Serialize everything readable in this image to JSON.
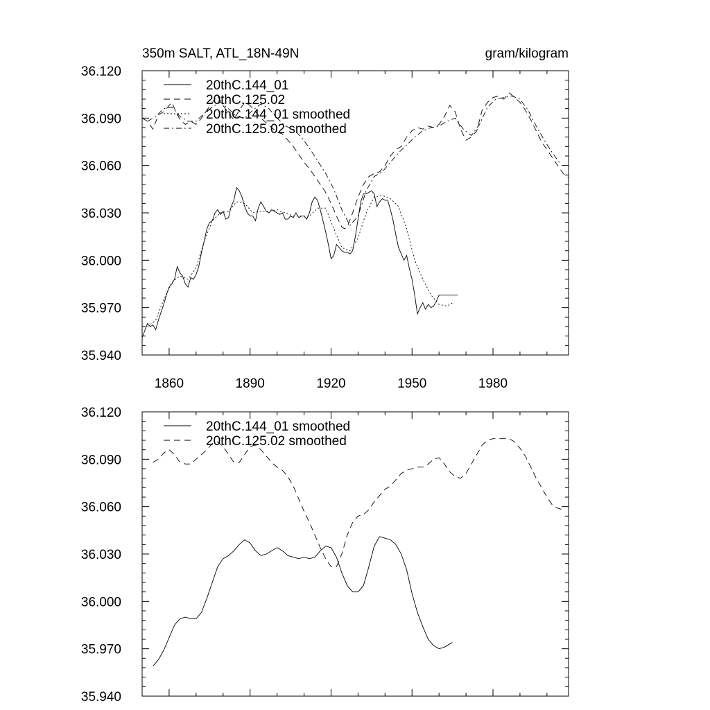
{
  "chart_data": [
    {
      "type": "line",
      "title": "350m SALT, ATL_18N-49N",
      "units": "gram/kilogram",
      "xlim": [
        1850,
        2008
      ],
      "ylim": [
        35.94,
        36.12
      ],
      "y_ticks": [
        "36.120",
        "36.090",
        "36.060",
        "36.030",
        "36.000",
        "35.970",
        "35.940"
      ],
      "x_ticks": [
        "1860",
        "1890",
        "1920",
        "1950",
        "1980"
      ],
      "legend": "top-left",
      "series": [
        {
          "name": "20thC.144_01",
          "style": "solid",
          "x": [
            1850,
            1852,
            1853,
            1854,
            1855,
            1856,
            1857,
            1858,
            1859,
            1860,
            1861,
            1862,
            1863,
            1864,
            1865,
            1866,
            1867,
            1868,
            1869,
            1870,
            1871,
            1872,
            1873,
            1874,
            1875,
            1876,
            1877,
            1878,
            1879,
            1880,
            1881,
            1882,
            1883,
            1884,
            1885,
            1886,
            1887,
            1888,
            1889,
            1890,
            1891,
            1892,
            1893,
            1894,
            1895,
            1896,
            1897,
            1898,
            1899,
            1900,
            1901,
            1902,
            1903,
            1904,
            1905,
            1906,
            1907,
            1908,
            1909,
            1910,
            1911,
            1912,
            1913,
            1914,
            1915,
            1916,
            1917,
            1918,
            1919,
            1920,
            1921,
            1922,
            1923,
            1924,
            1925,
            1926,
            1927,
            1928,
            1929,
            1930,
            1931,
            1932,
            1933,
            1934,
            1935,
            1936,
            1937,
            1938,
            1939,
            1940,
            1941,
            1942,
            1943,
            1944,
            1945,
            1946,
            1947,
            1948,
            1949,
            1950,
            1951,
            1952,
            1953,
            1954,
            1955,
            1956,
            1957,
            1958,
            1959,
            1960,
            1961,
            1962,
            1963,
            1964,
            1965,
            1966,
            1967
          ],
          "values": [
            35.951,
            35.96,
            35.958,
            35.959,
            35.956,
            35.962,
            35.967,
            35.972,
            35.978,
            35.983,
            35.985,
            35.988,
            35.996,
            35.992,
            35.99,
            35.985,
            35.983,
            35.989,
            35.988,
            35.991,
            35.996,
            36.005,
            36.012,
            36.02,
            36.024,
            36.025,
            36.03,
            36.032,
            36.029,
            36.031,
            36.026,
            36.027,
            36.034,
            36.038,
            36.046,
            36.044,
            36.04,
            36.034,
            36.03,
            36.028,
            36.028,
            36.025,
            36.033,
            36.037,
            36.034,
            36.031,
            36.03,
            36.032,
            36.031,
            36.03,
            36.029,
            36.03,
            36.026,
            36.026,
            36.028,
            36.027,
            36.03,
            36.027,
            36.028,
            36.028,
            36.026,
            36.03,
            36.037,
            36.04,
            36.038,
            36.032,
            36.025,
            36.018,
            36.01,
            36.001,
            36.003,
            36.01,
            36.008,
            36.006,
            36.005,
            36.005,
            36.004,
            36.006,
            36.015,
            36.026,
            36.037,
            36.042,
            36.042,
            36.043,
            36.044,
            36.042,
            36.034,
            36.037,
            36.039,
            36.038,
            36.038,
            36.032,
            36.025,
            36.016,
            36.008,
            36.004,
            36.0,
            36.003,
            35.995,
            35.988,
            35.978,
            35.966,
            35.97,
            35.973,
            35.969,
            35.972,
            35.97,
            35.971,
            35.974,
            35.978,
            35.978,
            35.978,
            35.978,
            35.978,
            35.978,
            35.978,
            35.978
          ],
          "x_end": 1967
        },
        {
          "name": "20thC.125.02",
          "style": "dashed",
          "x": [
            1850,
            1852,
            1854,
            1856,
            1858,
            1860,
            1861,
            1862,
            1864,
            1866,
            1868,
            1870,
            1872,
            1874,
            1876,
            1878,
            1880,
            1882,
            1884,
            1886,
            1888,
            1890,
            1892,
            1894,
            1896,
            1898,
            1900,
            1902,
            1904,
            1906,
            1908,
            1910,
            1912,
            1914,
            1916,
            1918,
            1920,
            1922,
            1924,
            1925,
            1926,
            1928,
            1930,
            1932,
            1934,
            1936,
            1938,
            1940,
            1942,
            1944,
            1946,
            1948,
            1950,
            1952,
            1954,
            1956,
            1958,
            1960,
            1962,
            1964,
            1966,
            1968,
            1970,
            1972,
            1974,
            1976,
            1978,
            1980,
            1982,
            1984,
            1986,
            1988,
            1990,
            1992,
            1994,
            1996,
            1998,
            2000,
            2002,
            2004,
            2006,
            2008
          ],
          "values": [
            36.09,
            36.088,
            36.083,
            36.092,
            36.094,
            36.098,
            36.1,
            36.096,
            36.089,
            36.086,
            36.088,
            36.086,
            36.09,
            36.095,
            36.1,
            36.104,
            36.098,
            36.093,
            36.089,
            36.095,
            36.1,
            36.098,
            36.094,
            36.09,
            36.087,
            36.084,
            36.081,
            36.08,
            36.076,
            36.072,
            36.067,
            36.062,
            36.058,
            36.053,
            36.048,
            36.043,
            36.036,
            36.028,
            36.021,
            36.02,
            36.021,
            36.03,
            36.04,
            36.048,
            36.053,
            36.055,
            36.056,
            36.06,
            36.066,
            36.07,
            36.072,
            36.078,
            36.082,
            36.084,
            36.083,
            36.085,
            36.084,
            36.086,
            36.091,
            36.098,
            36.094,
            36.083,
            36.076,
            36.078,
            36.082,
            36.095,
            36.1,
            36.103,
            36.104,
            36.102,
            36.106,
            36.103,
            36.1,
            36.095,
            36.089,
            36.082,
            36.075,
            36.07,
            36.065,
            36.06,
            36.055,
            36.052
          ]
        },
        {
          "name": "20thC.144_01 smoothed",
          "style": "dotted",
          "x": [
            1852,
            1855,
            1858,
            1861,
            1864,
            1867,
            1870,
            1873,
            1876,
            1879,
            1882,
            1885,
            1888,
            1891,
            1894,
            1897,
            1900,
            1903,
            1906,
            1909,
            1912,
            1915,
            1918,
            1921,
            1924,
            1927,
            1930,
            1933,
            1936,
            1939,
            1942,
            1945,
            1948,
            1951,
            1954,
            1957,
            1960,
            1963,
            1965
          ],
          "values": [
            35.958,
            35.962,
            35.975,
            35.986,
            35.99,
            35.988,
            35.995,
            36.012,
            36.025,
            36.03,
            36.031,
            36.037,
            36.036,
            36.03,
            36.031,
            36.031,
            36.032,
            36.03,
            36.028,
            36.028,
            36.028,
            36.033,
            36.033,
            36.02,
            36.008,
            36.006,
            36.014,
            36.03,
            36.04,
            36.041,
            36.039,
            36.034,
            36.02,
            36.0,
            35.988,
            35.978,
            35.972,
            35.971,
            35.973
          ]
        },
        {
          "name": "20thC.125.02 smoothed",
          "style": "dashdot",
          "x": [
            1852,
            1855,
            1858,
            1861,
            1864,
            1867,
            1870,
            1873,
            1876,
            1879,
            1882,
            1885,
            1888,
            1891,
            1894,
            1897,
            1900,
            1903,
            1906,
            1909,
            1912,
            1915,
            1918,
            1921,
            1924,
            1927,
            1930,
            1933,
            1936,
            1939,
            1942,
            1945,
            1948,
            1951,
            1954,
            1957,
            1960,
            1963,
            1966,
            1969,
            1972,
            1975,
            1978,
            1981,
            1984,
            1987,
            1990,
            1993,
            1996,
            1999,
            2002,
            2005
          ],
          "values": [
            36.088,
            36.091,
            36.096,
            36.097,
            36.091,
            36.088,
            36.088,
            36.093,
            36.097,
            36.1,
            36.096,
            36.091,
            36.09,
            36.095,
            36.099,
            36.096,
            36.09,
            36.085,
            36.083,
            36.078,
            36.071,
            36.063,
            36.055,
            36.045,
            36.032,
            36.022,
            36.028,
            36.044,
            36.053,
            36.056,
            36.062,
            36.068,
            36.073,
            36.078,
            36.082,
            36.084,
            36.085,
            36.088,
            36.09,
            36.083,
            36.079,
            36.086,
            36.097,
            36.102,
            36.103,
            36.104,
            36.102,
            36.095,
            36.085,
            36.076,
            36.068,
            36.061
          ]
        }
      ]
    },
    {
      "type": "line",
      "xlim": [
        1850,
        2008
      ],
      "ylim": [
        35.94,
        36.12
      ],
      "y_ticks": [
        "36.120",
        "36.090",
        "36.060",
        "36.030",
        "36.000",
        "35.970",
        "35.940"
      ],
      "x_ticks": [
        "",
        "",
        "",
        "",
        ""
      ],
      "legend": "top-left",
      "series": [
        {
          "name": "20thC.144_01 smoothed",
          "style": "solid",
          "x": [
            1854,
            1856,
            1858,
            1860,
            1862,
            1864,
            1866,
            1868,
            1870,
            1872,
            1874,
            1876,
            1878,
            1880,
            1882,
            1884,
            1886,
            1888,
            1890,
            1892,
            1894,
            1896,
            1898,
            1900,
            1902,
            1904,
            1906,
            1908,
            1910,
            1912,
            1914,
            1916,
            1918,
            1920,
            1922,
            1924,
            1926,
            1928,
            1930,
            1932,
            1934,
            1936,
            1938,
            1940,
            1942,
            1944,
            1946,
            1948,
            1950,
            1952,
            1954,
            1956,
            1958,
            1960,
            1962,
            1964,
            1965
          ],
          "values": [
            35.959,
            35.963,
            35.969,
            35.977,
            35.985,
            35.989,
            35.99,
            35.989,
            35.989,
            35.993,
            36.002,
            36.012,
            36.022,
            36.027,
            36.029,
            36.032,
            36.036,
            36.039,
            36.037,
            36.032,
            36.029,
            36.03,
            36.032,
            36.034,
            36.032,
            36.029,
            36.028,
            36.027,
            36.028,
            36.027,
            36.028,
            36.032,
            36.035,
            36.034,
            36.028,
            36.018,
            36.01,
            36.006,
            36.006,
            36.01,
            36.022,
            36.035,
            36.041,
            36.04,
            36.039,
            36.036,
            36.03,
            36.02,
            36.005,
            35.993,
            35.984,
            35.976,
            35.972,
            35.97,
            35.971,
            35.973,
            35.974
          ]
        },
        {
          "name": "20thC.125.02 smoothed",
          "style": "dashed",
          "x": [
            1854,
            1856,
            1858,
            1860,
            1862,
            1864,
            1866,
            1868,
            1870,
            1872,
            1874,
            1876,
            1878,
            1880,
            1882,
            1884,
            1886,
            1888,
            1890,
            1892,
            1894,
            1896,
            1898,
            1900,
            1902,
            1904,
            1906,
            1908,
            1910,
            1912,
            1914,
            1916,
            1918,
            1920,
            1922,
            1924,
            1926,
            1928,
            1930,
            1932,
            1934,
            1936,
            1938,
            1940,
            1942,
            1944,
            1946,
            1948,
            1950,
            1952,
            1954,
            1956,
            1958,
            1960,
            1962,
            1964,
            1966,
            1968,
            1970,
            1972,
            1974,
            1976,
            1978,
            1980,
            1982,
            1984,
            1986,
            1988,
            1990,
            1992,
            1994,
            1996,
            1998,
            2000,
            2002,
            2004,
            2006
          ],
          "values": [
            36.088,
            36.09,
            36.094,
            36.096,
            36.093,
            36.088,
            36.087,
            36.087,
            36.09,
            36.093,
            36.096,
            36.1,
            36.101,
            36.098,
            36.093,
            36.088,
            36.088,
            36.093,
            36.098,
            36.099,
            36.096,
            36.092,
            36.088,
            36.085,
            36.083,
            36.079,
            36.073,
            36.065,
            36.057,
            36.05,
            36.042,
            36.034,
            36.027,
            36.022,
            36.022,
            36.03,
            36.042,
            36.05,
            36.054,
            36.055,
            36.058,
            36.063,
            36.067,
            36.071,
            36.073,
            36.077,
            36.081,
            36.083,
            36.084,
            36.085,
            36.085,
            36.087,
            36.09,
            36.091,
            36.087,
            36.082,
            36.079,
            36.078,
            36.081,
            36.087,
            36.093,
            36.099,
            36.102,
            36.103,
            36.103,
            36.103,
            36.103,
            36.101,
            36.097,
            36.092,
            36.085,
            36.078,
            36.072,
            36.066,
            36.061,
            36.059,
            36.058
          ]
        }
      ]
    }
  ]
}
